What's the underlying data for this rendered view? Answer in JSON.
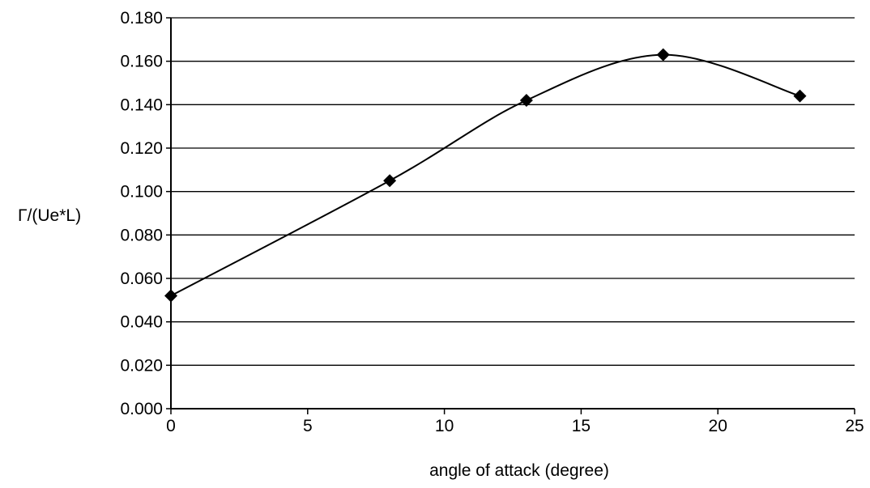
{
  "chart_data": {
    "type": "line",
    "title": "",
    "xlabel": "angle of attack (degree)",
    "ylabel": "Γ/(Ue*L)",
    "xlim": [
      0,
      25
    ],
    "ylim": [
      0,
      0.18
    ],
    "x_ticks": [
      0,
      5,
      10,
      15,
      20,
      25
    ],
    "x_tick_labels": [
      "0",
      "5",
      "10",
      "15",
      "20",
      "25"
    ],
    "y_ticks": [
      0,
      0.02,
      0.04,
      0.06,
      0.08,
      0.1,
      0.12,
      0.14,
      0.16,
      0.18
    ],
    "y_tick_labels": [
      "0.000",
      "0.020",
      "0.040",
      "0.060",
      "0.080",
      "0.100",
      "0.120",
      "0.140",
      "0.160",
      "0.180"
    ],
    "grid": "horizontal",
    "legend": "none",
    "smoothed": true,
    "marker": "diamond",
    "line_color": "#000000",
    "marker_color": "#000000",
    "series": [
      {
        "x": [
          0,
          8,
          13,
          18,
          23
        ],
        "y": [
          0.052,
          0.105,
          0.142,
          0.163,
          0.144
        ]
      }
    ]
  }
}
